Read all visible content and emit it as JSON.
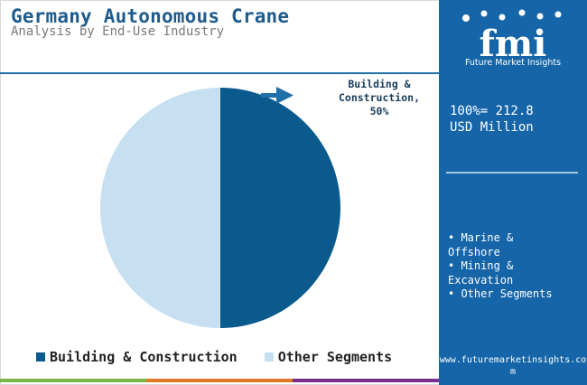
{
  "header": {
    "title": "Germany Autonomous Crane",
    "subtitle": "Analysis by End-Use Industry"
  },
  "chart_data": {
    "type": "pie",
    "title": "Germany Autonomous Crane",
    "subtitle": "Analysis by End-Use Industry",
    "slices": [
      {
        "label": "Building & Construction",
        "value": 50,
        "color": "#0b5a8e"
      },
      {
        "label": "Other Segments",
        "value": 50,
        "color": "#c6e0f2"
      }
    ],
    "legend_position": "bottom",
    "callout": {
      "lines": [
        "Building &",
        "Construction,",
        "50%"
      ]
    }
  },
  "legend": {
    "items": [
      {
        "label": "Building & Construction",
        "color": "#0b5a8e"
      },
      {
        "label": "Other Segments",
        "color": "#c6e0f2"
      }
    ]
  },
  "sidebar": {
    "logo_text": "fmi",
    "logo_subtext": "Future Market Insights",
    "total_lines": [
      "100%= 212.8",
      "USD Million"
    ],
    "other_segments_lines": [
      "• Marine &",
      "Offshore",
      "• Mining &",
      "Excavation",
      "• Other Segments"
    ],
    "url": "www.futuremarketinsights.co\nm"
  },
  "colors": {
    "accent": "#1565a8",
    "title": "#1f5c8c",
    "strip": [
      "#7ab648",
      "#e07b24",
      "#7b2d8e"
    ]
  }
}
